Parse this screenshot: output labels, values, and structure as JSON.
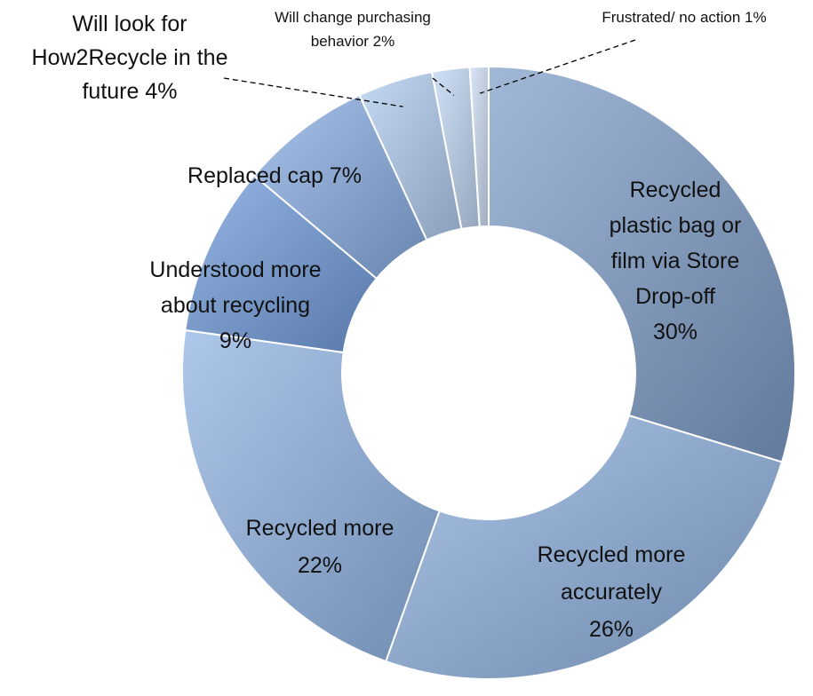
{
  "chart_data": {
    "type": "pie",
    "donut": true,
    "title": "",
    "legend": "none",
    "slices": [
      {
        "label": "Recycled plastic bag or film via Store Drop-off 30%",
        "category": "Recycled plastic bag or film via Store Drop-off",
        "value": 30,
        "color": "#7E9CC8"
      },
      {
        "label": "Recycled more accurately 26%",
        "category": "Recycled more accurately",
        "value": 26,
        "color": "#8CAEDD"
      },
      {
        "label": "Recycled more 22%",
        "category": "Recycled more",
        "value": 22,
        "color": "#8FB3E3"
      },
      {
        "label": "Understood more about recycling 9%",
        "category": "Understood more about recycling",
        "value": 9,
        "color": "#6F9ADA"
      },
      {
        "label": "Replaced cap 7%",
        "category": "Replaced cap",
        "value": 7,
        "color": "#86ACE2"
      },
      {
        "label": "Will look for How2Recycle in the future 4%",
        "category": "Will look for How2Recycle in the future",
        "value": 4,
        "color": "#AFCBEF"
      },
      {
        "label": "Will change purchasing behavior 2%",
        "category": "Will change purchasing behavior",
        "value": 2,
        "color": "#BFD5F2"
      },
      {
        "label": "Frustrated/ no action 1%",
        "category": "Frustrated/ no action",
        "value": 1,
        "color": "#CCDCF4"
      }
    ],
    "label_lines": [
      [
        "Recycled",
        "plastic bag or",
        "film via Store",
        "Drop-off",
        "30%"
      ],
      [
        "Recycled more",
        "accurately",
        "26%"
      ],
      [
        "Recycled more",
        "22%"
      ],
      [
        "Understood more",
        "about recycling",
        "9%"
      ],
      [
        "Replaced cap 7%"
      ],
      [
        "Will look for",
        "How2Recycle in the",
        "future 4%"
      ],
      [
        "Will change purchasing",
        "behavior 2%"
      ],
      [
        "Frustrated/ no action 1%"
      ]
    ]
  }
}
